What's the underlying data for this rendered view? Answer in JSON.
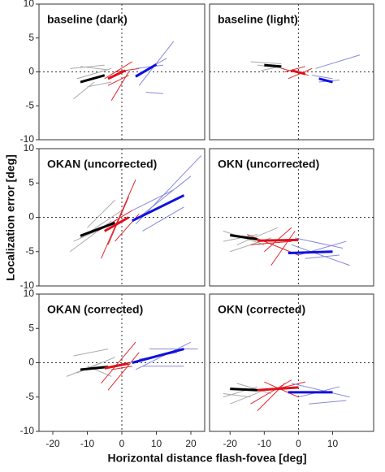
{
  "y_label": "Localization error [deg]",
  "x_label": "Horizontal distance flash-fovea [deg]",
  "chart_data": [
    {
      "type": "line",
      "title": "baseline (dark)",
      "xlim": [
        -24,
        24
      ],
      "ylim": [
        -10,
        10
      ],
      "yticks": [
        -10,
        -5,
        0,
        5,
        10
      ],
      "series": [
        {
          "color": "#aaaaaa",
          "linewidth": 1,
          "x": [
            -15,
            -5
          ],
          "values": [
            0.5,
            1
          ]
        },
        {
          "color": "#aaaaaa",
          "linewidth": 1,
          "x": [
            -13,
            -3
          ],
          "values": [
            -1,
            0.5
          ]
        },
        {
          "color": "#aaaaaa",
          "linewidth": 1,
          "x": [
            -14,
            -8
          ],
          "values": [
            -4,
            -1.5
          ]
        },
        {
          "color": "#aaaaaa",
          "linewidth": 1,
          "x": [
            -12,
            -4
          ],
          "values": [
            0.8,
            0.3
          ]
        },
        {
          "color": "#aaaaaa",
          "linewidth": 1,
          "x": [
            -10,
            -3
          ],
          "values": [
            -2.2,
            -1.5
          ]
        },
        {
          "color": "#e02a30",
          "linewidth": 1,
          "x": [
            -3,
            2
          ],
          "values": [
            -4.2,
            0
          ]
        },
        {
          "color": "#e02a30",
          "linewidth": 1,
          "x": [
            -5,
            3
          ],
          "values": [
            -1,
            1.5
          ]
        },
        {
          "color": "#e02a30",
          "linewidth": 1,
          "x": [
            -2,
            5
          ],
          "values": [
            0,
            0.5
          ]
        },
        {
          "color": "#e02a30",
          "linewidth": 1,
          "x": [
            -4,
            2
          ],
          "values": [
            -2,
            -0.5
          ]
        },
        {
          "color": "#8888dd",
          "linewidth": 1,
          "x": [
            5,
            15
          ],
          "values": [
            -2,
            4.5
          ]
        },
        {
          "color": "#8888dd",
          "linewidth": 1,
          "x": [
            4,
            12
          ],
          "values": [
            0.5,
            1
          ]
        },
        {
          "color": "#8888dd",
          "linewidth": 1,
          "x": [
            7,
            12
          ],
          "values": [
            -3,
            -3.2
          ]
        },
        {
          "color": "#8888dd",
          "linewidth": 1,
          "x": [
            4,
            13
          ],
          "values": [
            -0.5,
            2
          ]
        },
        {
          "color": "#000000",
          "linewidth": 3,
          "x": [
            -12,
            -5
          ],
          "values": [
            -1.5,
            -0.5
          ]
        },
        {
          "color": "#e0101a",
          "linewidth": 3,
          "x": [
            -4,
            1
          ],
          "values": [
            -1,
            0.2
          ]
        },
        {
          "color": "#1010e0",
          "linewidth": 3,
          "x": [
            4,
            10
          ],
          "values": [
            -0.7,
            1.1
          ]
        }
      ]
    },
    {
      "type": "line",
      "title": "baseline (light)",
      "xlim": [
        -26,
        22
      ],
      "ylim": [
        -10,
        10
      ],
      "series": [
        {
          "color": "#aaaaaa",
          "linewidth": 1,
          "x": [
            -14,
            -5
          ],
          "values": [
            1.5,
            1.2
          ]
        },
        {
          "color": "#aaaaaa",
          "linewidth": 1,
          "x": [
            -12,
            -4
          ],
          "values": [
            1,
            0.5
          ]
        },
        {
          "color": "#aaaaaa",
          "linewidth": 1,
          "x": [
            -11,
            -5
          ],
          "values": [
            0.2,
            0.8
          ]
        },
        {
          "color": "#e02a30",
          "linewidth": 1,
          "x": [
            -5,
            3
          ],
          "values": [
            0.5,
            -0.5
          ]
        },
        {
          "color": "#e02a30",
          "linewidth": 1,
          "x": [
            -3,
            4
          ],
          "values": [
            -1,
            0.5
          ]
        },
        {
          "color": "#e02a30",
          "linewidth": 1,
          "x": [
            -4,
            2
          ],
          "values": [
            0,
            0.8
          ]
        },
        {
          "color": "#8888dd",
          "linewidth": 1,
          "x": [
            5,
            18
          ],
          "values": [
            0.5,
            2.5
          ]
        },
        {
          "color": "#8888dd",
          "linewidth": 1,
          "x": [
            4,
            10
          ],
          "values": [
            -0.5,
            -1
          ]
        },
        {
          "color": "#8888dd",
          "linewidth": 1,
          "x": [
            6,
            12
          ],
          "values": [
            -1.5,
            -1.2
          ]
        },
        {
          "color": "#000000",
          "linewidth": 3,
          "x": [
            -10,
            -5
          ],
          "values": [
            1,
            0.8
          ]
        },
        {
          "color": "#e0101a",
          "linewidth": 3,
          "x": [
            -2,
            2
          ],
          "values": [
            0.2,
            -0.3
          ]
        },
        {
          "color": "#1010e0",
          "linewidth": 3,
          "x": [
            6,
            10
          ],
          "values": [
            -1,
            -1.5
          ]
        }
      ]
    },
    {
      "type": "line",
      "title": "OKAN (uncorrected)",
      "xlim": [
        -24,
        24
      ],
      "ylim": [
        -10,
        10
      ],
      "yticks": [
        -10,
        -5,
        0,
        5,
        10
      ],
      "series": [
        {
          "color": "#aaaaaa",
          "linewidth": 1,
          "x": [
            -15,
            -3
          ],
          "values": [
            -5,
            -0.5
          ]
        },
        {
          "color": "#aaaaaa",
          "linewidth": 1,
          "x": [
            -12,
            0
          ],
          "values": [
            -3,
            1
          ]
        },
        {
          "color": "#aaaaaa",
          "linewidth": 1,
          "x": [
            -10,
            -2
          ],
          "values": [
            -1.5,
            2.5
          ]
        },
        {
          "color": "#aaaaaa",
          "linewidth": 1,
          "x": [
            -14,
            -5
          ],
          "values": [
            -3.5,
            -1.5
          ]
        },
        {
          "color": "#e02a30",
          "linewidth": 1,
          "x": [
            -6,
            4
          ],
          "values": [
            -6,
            5.5
          ]
        },
        {
          "color": "#e02a30",
          "linewidth": 1,
          "x": [
            -4,
            2
          ],
          "values": [
            -4,
            3
          ]
        },
        {
          "color": "#e02a30",
          "linewidth": 1,
          "x": [
            -7,
            3
          ],
          "values": [
            -2,
            1
          ]
        },
        {
          "color": "#e02a30",
          "linewidth": 1,
          "x": [
            -2,
            5
          ],
          "values": [
            -3.5,
            0.5
          ]
        },
        {
          "color": "#8888dd",
          "linewidth": 1,
          "x": [
            4,
            23
          ],
          "values": [
            -1,
            9
          ]
        },
        {
          "color": "#8888dd",
          "linewidth": 1,
          "x": [
            5,
            20
          ],
          "values": [
            0,
            6
          ]
        },
        {
          "color": "#8888dd",
          "linewidth": 1,
          "x": [
            6,
            18
          ],
          "values": [
            -2,
            1.5
          ]
        },
        {
          "color": "#8888dd",
          "linewidth": 1,
          "x": [
            3,
            15
          ],
          "values": [
            1,
            4
          ]
        },
        {
          "color": "#000000",
          "linewidth": 3,
          "x": [
            -12,
            -2
          ],
          "values": [
            -2.7,
            -0.8
          ]
        },
        {
          "color": "#e0101a",
          "linewidth": 3,
          "x": [
            -5,
            2
          ],
          "values": [
            -2,
            0
          ]
        },
        {
          "color": "#1010e0",
          "linewidth": 3,
          "x": [
            3,
            18
          ],
          "values": [
            -0.5,
            3.2
          ]
        }
      ]
    },
    {
      "type": "line",
      "title": "OKN (uncorrected)",
      "xlim": [
        -26,
        22
      ],
      "ylim": [
        -10,
        10
      ],
      "series": [
        {
          "color": "#aaaaaa",
          "linewidth": 1,
          "x": [
            -22,
            -10
          ],
          "values": [
            -2,
            -4
          ]
        },
        {
          "color": "#aaaaaa",
          "linewidth": 1,
          "x": [
            -20,
            -8
          ],
          "values": [
            -5,
            -3
          ]
        },
        {
          "color": "#aaaaaa",
          "linewidth": 1,
          "x": [
            -18,
            -6
          ],
          "values": [
            -4,
            -1.5
          ]
        },
        {
          "color": "#aaaaaa",
          "linewidth": 1,
          "x": [
            -22,
            -12
          ],
          "values": [
            -3.5,
            -2.5
          ]
        },
        {
          "color": "#e02a30",
          "linewidth": 1,
          "x": [
            -15,
            0
          ],
          "values": [
            -2.5,
            -5.5
          ]
        },
        {
          "color": "#e02a30",
          "linewidth": 1,
          "x": [
            -10,
            -2
          ],
          "values": [
            -5,
            -1.5
          ]
        },
        {
          "color": "#e02a30",
          "linewidth": 1,
          "x": [
            -14,
            -2
          ],
          "values": [
            -4,
            -3.5
          ]
        },
        {
          "color": "#e02a30",
          "linewidth": 1,
          "x": [
            -8,
            -1
          ],
          "values": [
            -7,
            -2
          ]
        },
        {
          "color": "#8888dd",
          "linewidth": 1,
          "x": [
            -2,
            15
          ],
          "values": [
            -4,
            -7
          ]
        },
        {
          "color": "#8888dd",
          "linewidth": 1,
          "x": [
            0,
            14
          ],
          "values": [
            -5.5,
            -3.5
          ]
        },
        {
          "color": "#8888dd",
          "linewidth": 1,
          "x": [
            2,
            12
          ],
          "values": [
            -6,
            -5.5
          ]
        },
        {
          "color": "#8888dd",
          "linewidth": 1,
          "x": [
            -1,
            13
          ],
          "values": [
            -3,
            -4.5
          ]
        },
        {
          "color": "#000000",
          "linewidth": 3,
          "x": [
            -20,
            -12
          ],
          "values": [
            -2.6,
            -3.2
          ]
        },
        {
          "color": "#e0101a",
          "linewidth": 3,
          "x": [
            -12,
            0
          ],
          "values": [
            -3.4,
            -3.3
          ]
        },
        {
          "color": "#1010e0",
          "linewidth": 3,
          "x": [
            -3,
            10
          ],
          "values": [
            -5.2,
            -5
          ]
        }
      ]
    },
    {
      "type": "line",
      "title": "OKAN (corrected)",
      "xlim": [
        -24,
        24
      ],
      "ylim": [
        -10,
        10
      ],
      "yticks": [
        -10,
        -5,
        0,
        5,
        10
      ],
      "xticks": [
        -20,
        -10,
        0,
        10,
        20
      ],
      "series": [
        {
          "color": "#aaaaaa",
          "linewidth": 1,
          "x": [
            -14,
            -4
          ],
          "values": [
            1,
            2
          ]
        },
        {
          "color": "#aaaaaa",
          "linewidth": 1,
          "x": [
            -16,
            -6
          ],
          "values": [
            -2,
            0
          ]
        },
        {
          "color": "#aaaaaa",
          "linewidth": 1,
          "x": [
            -13,
            -2
          ],
          "values": [
            -1.5,
            0.8
          ]
        },
        {
          "color": "#aaaaaa",
          "linewidth": 1,
          "x": [
            -10,
            -3
          ],
          "values": [
            -0.5,
            -2
          ]
        },
        {
          "color": "#e02a30",
          "linewidth": 1,
          "x": [
            -4,
            5
          ],
          "values": [
            -4,
            1.5
          ]
        },
        {
          "color": "#e02a30",
          "linewidth": 1,
          "x": [
            -6,
            4
          ],
          "values": [
            -3,
            3
          ]
        },
        {
          "color": "#e02a30",
          "linewidth": 1,
          "x": [
            -3,
            3
          ],
          "values": [
            -1,
            -0.5
          ]
        },
        {
          "color": "#8888dd",
          "linewidth": 1,
          "x": [
            4,
            20
          ],
          "values": [
            -1,
            3
          ]
        },
        {
          "color": "#8888dd",
          "linewidth": 1,
          "x": [
            5,
            16
          ],
          "values": [
            0.5,
            1.5
          ]
        },
        {
          "color": "#8888dd",
          "linewidth": 1,
          "x": [
            8,
            22
          ],
          "values": [
            2,
            2
          ]
        },
        {
          "color": "#8888dd",
          "linewidth": 1,
          "x": [
            6,
            18
          ],
          "values": [
            -0.5,
            -0.5
          ]
        },
        {
          "color": "#000000",
          "linewidth": 3,
          "x": [
            -12,
            -4
          ],
          "values": [
            -1,
            -0.6
          ]
        },
        {
          "color": "#e0101a",
          "linewidth": 3,
          "x": [
            -5,
            2
          ],
          "values": [
            -0.8,
            -0.1
          ]
        },
        {
          "color": "#1010e0",
          "linewidth": 3,
          "x": [
            3,
            18
          ],
          "values": [
            0,
            2
          ]
        }
      ]
    },
    {
      "type": "line",
      "title": "OKN (corrected)",
      "xlim": [
        -26,
        22
      ],
      "ylim": [
        -10,
        10
      ],
      "xticks": [
        -20,
        -10,
        0,
        10
      ],
      "series": [
        {
          "color": "#aaaaaa",
          "linewidth": 1,
          "x": [
            -22,
            -12
          ],
          "values": [
            -5,
            -3.5
          ]
        },
        {
          "color": "#aaaaaa",
          "linewidth": 1,
          "x": [
            -20,
            -10
          ],
          "values": [
            -6,
            -4
          ]
        },
        {
          "color": "#aaaaaa",
          "linewidth": 1,
          "x": [
            -18,
            -8
          ],
          "values": [
            -3,
            -4.5
          ]
        },
        {
          "color": "#aaaaaa",
          "linewidth": 1,
          "x": [
            -22,
            -14
          ],
          "values": [
            -4.5,
            -5
          ]
        },
        {
          "color": "#e02a30",
          "linewidth": 1,
          "x": [
            -14,
            -2
          ],
          "values": [
            -6,
            -2.5
          ]
        },
        {
          "color": "#e02a30",
          "linewidth": 1,
          "x": [
            -10,
            0
          ],
          "values": [
            -2.8,
            -5
          ]
        },
        {
          "color": "#e02a30",
          "linewidth": 1,
          "x": [
            -12,
            -4
          ],
          "values": [
            -7,
            -3
          ]
        },
        {
          "color": "#e02a30",
          "linewidth": 1,
          "x": [
            -8,
            2
          ],
          "values": [
            -4,
            -2.8
          ]
        },
        {
          "color": "#8888dd",
          "linewidth": 1,
          "x": [
            -2,
            15
          ],
          "values": [
            -3,
            -5
          ]
        },
        {
          "color": "#8888dd",
          "linewidth": 1,
          "x": [
            0,
            12
          ],
          "values": [
            -5,
            -3.5
          ]
        },
        {
          "color": "#8888dd",
          "linewidth": 1,
          "x": [
            3,
            14
          ],
          "values": [
            -6,
            -5.5
          ]
        },
        {
          "color": "#000000",
          "linewidth": 3,
          "x": [
            -20,
            -12
          ],
          "values": [
            -3.8,
            -4
          ]
        },
        {
          "color": "#e0101a",
          "linewidth": 3,
          "x": [
            -12,
            0
          ],
          "values": [
            -4,
            -3.6
          ]
        },
        {
          "color": "#1010e0",
          "linewidth": 3,
          "x": [
            -3,
            10
          ],
          "values": [
            -4.3,
            -4.3
          ]
        }
      ]
    }
  ]
}
